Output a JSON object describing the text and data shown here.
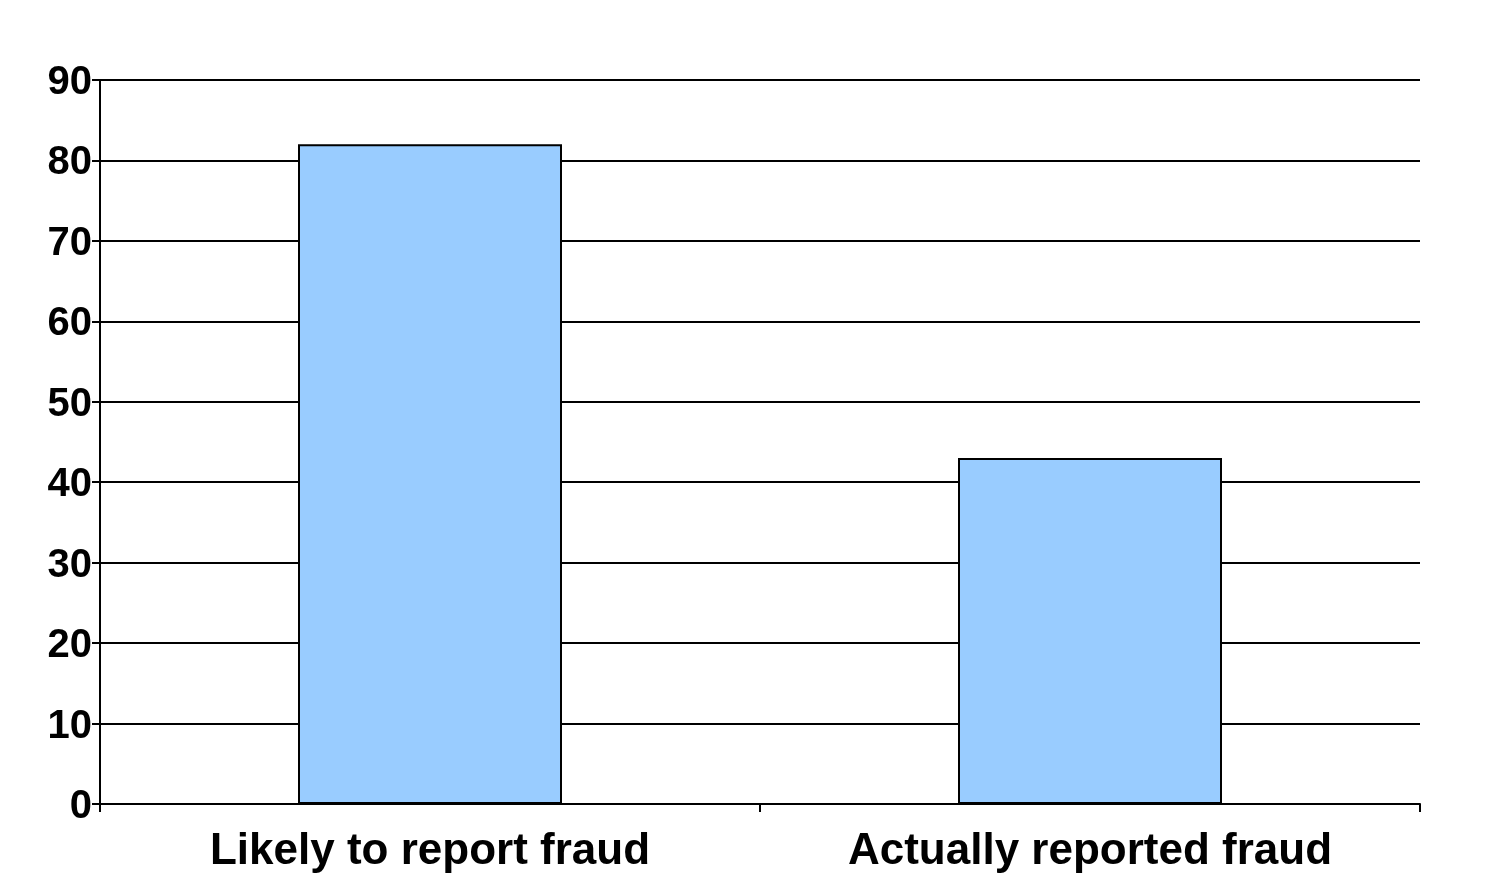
{
  "chart_data": {
    "type": "bar",
    "categories": [
      "Likely to report fraud",
      "Actually reported fraud"
    ],
    "values": [
      82,
      43
    ],
    "color": "#99ccff",
    "ylim": [
      0,
      90
    ],
    "yticks": [
      0,
      10,
      20,
      30,
      40,
      50,
      60,
      70,
      80,
      90
    ],
    "grid": "y"
  }
}
